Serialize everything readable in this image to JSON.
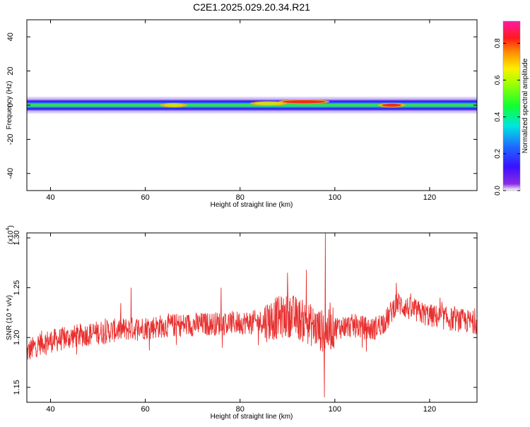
{
  "title": "C2E1.2025.029.20.34.R21",
  "colors": {
    "snr_line": "#e8302f",
    "band_core": "#e6302a",
    "band_mid": "#39d84a",
    "band_edge": "#2a18e0",
    "band_halo": "#c9b6f2"
  },
  "chart_data": [
    {
      "type": "heatmap",
      "name": "spectrogram",
      "title": "C2E1.2025.029.20.34.R21",
      "xlabel": "Height of straight line (km)",
      "ylabel": "Frequency (Hz)",
      "xlim": [
        35,
        130
      ],
      "ylim": [
        -50,
        50
      ],
      "x_ticks": [
        40,
        60,
        80,
        100,
        120
      ],
      "y_ticks": [
        40,
        20,
        0,
        -20,
        -40
      ],
      "y_tick_labels": [
        "40",
        "20",
        "0",
        "-20",
        "-40"
      ],
      "colorbar": {
        "label": "Normalized spectral amplitude",
        "range": [
          0.0,
          0.92
        ],
        "ticks": [
          "0.0",
          "0.2",
          "0.4",
          "0.6",
          "0.8"
        ],
        "tick_values": [
          0.0,
          0.2,
          0.4,
          0.6,
          0.8
        ],
        "colormap": "rainbow (violet → blue → cyan → green → yellow → orange → red → magenta)"
      },
      "band": {
        "center_hz": 0,
        "halo_half_width_hz": 5,
        "core_half_width_hz": 2,
        "hotspots": [
          {
            "x_from": 89,
            "x_to": 98,
            "freq_hz": 2,
            "amplitude": 0.85
          },
          {
            "x_from": 110,
            "x_to": 114,
            "freq_hz": 0,
            "amplitude": 0.88
          },
          {
            "x_from": 83,
            "x_to": 89,
            "freq_hz": 1,
            "amplitude": 0.6
          },
          {
            "x_from": 64,
            "x_to": 68,
            "freq_hz": 0,
            "amplitude": 0.6
          }
        ]
      }
    },
    {
      "type": "line",
      "name": "snr",
      "xlabel": "Height of straight line (km)",
      "ylabel": "SNR (10 * v/v)",
      "y_multiplier": "(x10",
      "y_multiplier_exp": "4",
      "y_multiplier_close": ")",
      "xlim": [
        35,
        130
      ],
      "ylim": [
        1.135,
        1.305
      ],
      "x_ticks": [
        40,
        60,
        80,
        100,
        120
      ],
      "y_ticks": [
        1.3,
        1.25,
        1.2,
        1.15
      ],
      "y_tick_labels": [
        "1.30",
        "1.25",
        "1.20",
        "1.15"
      ],
      "series": [
        {
          "x": [
            35,
            38,
            42,
            46,
            50,
            55,
            60,
            65,
            70,
            75,
            80,
            85,
            88,
            91,
            94,
            96,
            98,
            100,
            104,
            108,
            111,
            113,
            116,
            120,
            125,
            130
          ],
          "y": [
            1.185,
            1.195,
            1.198,
            1.202,
            1.205,
            1.208,
            1.21,
            1.212,
            1.213,
            1.214,
            1.215,
            1.216,
            1.22,
            1.222,
            1.215,
            1.21,
            1.205,
            1.21,
            1.212,
            1.208,
            1.218,
            1.235,
            1.228,
            1.222,
            1.218,
            1.215
          ],
          "noise_amplitude": 0.012
        }
      ],
      "peaks": [
        {
          "x": 98.0,
          "y": 1.305
        },
        {
          "x": 97.8,
          "y": 1.14
        },
        {
          "x": 94.0,
          "y": 1.268
        },
        {
          "x": 90.0,
          "y": 1.265
        },
        {
          "x": 76.0,
          "y": 1.25
        },
        {
          "x": 57.0,
          "y": 1.25
        }
      ]
    }
  ]
}
